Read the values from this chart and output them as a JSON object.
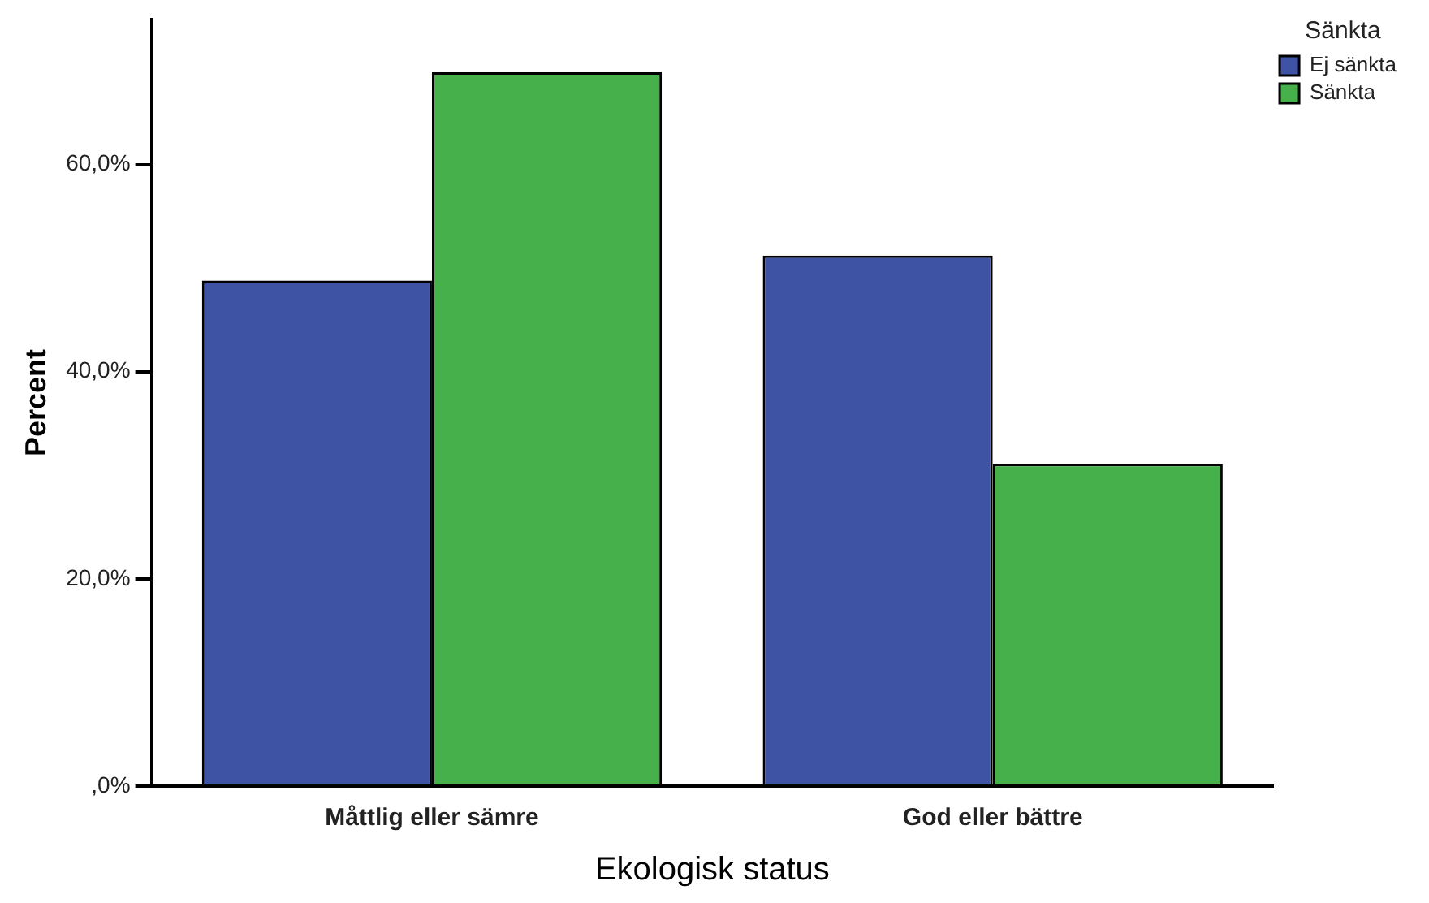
{
  "chart_data": {
    "type": "bar",
    "xlabel": "Ekologisk status",
    "ylabel": "Percent",
    "legend_title": "Sänkta",
    "categories": [
      "Måttlig eller sämre",
      "God eller bättre"
    ],
    "series": [
      {
        "name": "Ej sänkta",
        "color": "#3f53a5",
        "values": [
          48.8,
          51.2
        ]
      },
      {
        "name": "Sänkta",
        "color": "#46b04a",
        "values": [
          68.9,
          31.1
        ]
      }
    ],
    "ylim": [
      0,
      74
    ],
    "yticks": [
      {
        "value": 0,
        "label": ",0%"
      },
      {
        "value": 20,
        "label": "20,0%"
      },
      {
        "value": 40,
        "label": "40,0%"
      },
      {
        "value": 60,
        "label": "60,0%"
      }
    ],
    "grid": false,
    "legend": "top right"
  }
}
